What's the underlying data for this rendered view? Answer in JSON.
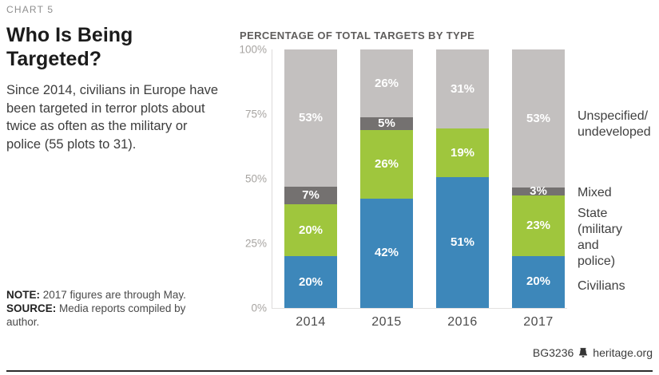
{
  "kicker": "CHART 5",
  "title": "Who Is Being Targeted?",
  "description": "Since 2014, civilians in Europe have been targeted in terror plots about twice as often as the military or police (55 plots to 31).",
  "note": {
    "label": "NOTE:",
    "text": "2017 figures are through May."
  },
  "source": {
    "label": "SOURCE:",
    "text": "Media reports compiled by author."
  },
  "footer": {
    "doc_id": "BG3236",
    "site": "heritage.org",
    "logo": "liberty-bell-icon"
  },
  "chart_data": {
    "type": "bar",
    "stacked": true,
    "title": "PERCENTAGE OF TOTAL TARGETS BY TYPE",
    "categories": [
      "2014",
      "2015",
      "2016",
      "2017"
    ],
    "series": [
      {
        "name": "Civilians",
        "color": "#3d87ba",
        "values": [
          20,
          42,
          51,
          20
        ]
      },
      {
        "name": "State (military and police)",
        "color": "#9fc63d",
        "values": [
          20,
          26,
          19,
          23
        ]
      },
      {
        "name": "Mixed",
        "color": "#747170",
        "values": [
          7,
          5,
          0,
          3
        ]
      },
      {
        "name": "Unspecified/undeveloped",
        "color": "#c3c0bf",
        "values": [
          53,
          26,
          31,
          53
        ]
      }
    ],
    "y_ticks": [
      "100%",
      "75%",
      "50%",
      "25%",
      "0%"
    ],
    "ylim": [
      0,
      100
    ],
    "grid": false,
    "legend_position": "right",
    "legend": [
      {
        "lines": "Unspecified/\nundeveloped"
      },
      {
        "lines": "Mixed"
      },
      {
        "lines": "State\n(military\nand police)"
      },
      {
        "lines": "Civilians"
      }
    ]
  }
}
